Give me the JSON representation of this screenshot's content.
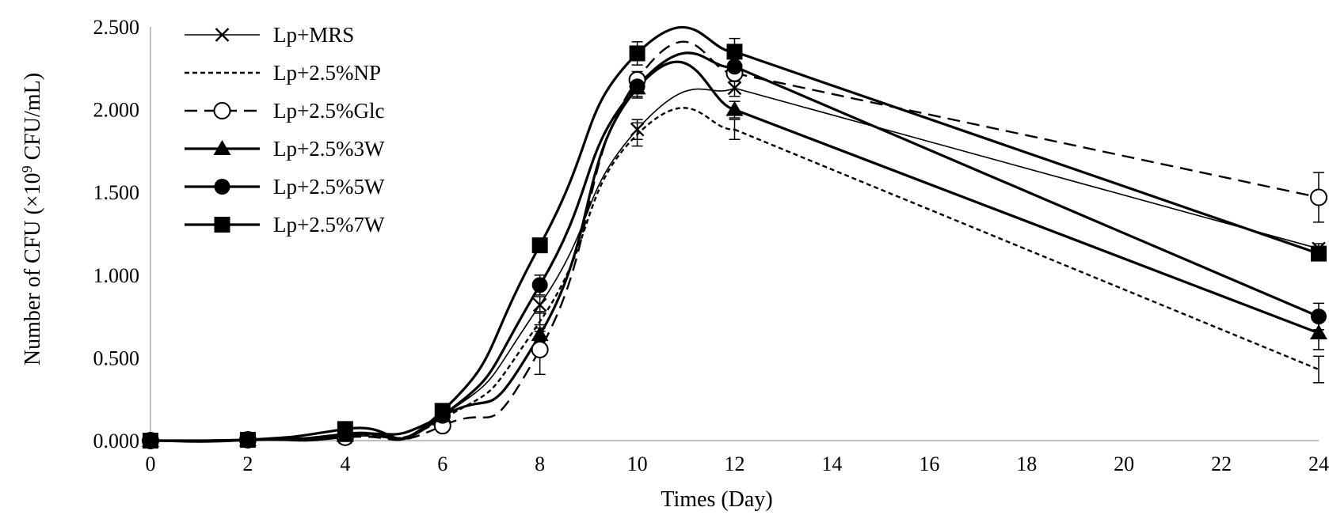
{
  "chart_data": {
    "type": "line",
    "title": "",
    "xlabel": "Times (Day)",
    "ylabel": {
      "prefix": "Number of CFU (×10",
      "superscript": "9",
      "suffix": " CFU/mL)"
    },
    "xlim": [
      0,
      24
    ],
    "ylim": [
      0,
      2.5
    ],
    "x_ticks": [
      "0",
      "2",
      "4",
      "6",
      "8",
      "10",
      "12",
      "14",
      "16",
      "18",
      "20",
      "22",
      "24"
    ],
    "y_ticks": [
      "0.000",
      "0.500",
      "1.000",
      "1.500",
      "2.000",
      "2.500"
    ],
    "grid": false,
    "legend_position": "top-left",
    "x": [
      0,
      2,
      4,
      6,
      8,
      10,
      12,
      24
    ],
    "series": [
      {
        "name": "Lp+MRS",
        "marker": "x",
        "line_style": "solid",
        "line_weight": "thin",
        "values": [
          0.0,
          0.005,
          0.02,
          0.15,
          0.82,
          1.88,
          2.13,
          1.16
        ],
        "errors": [
          0,
          0,
          0.01,
          0.02,
          0.05,
          0.06,
          0.05,
          0.03
        ]
      },
      {
        "name": "Lp+2.5%NP",
        "marker": "none",
        "line_style": "dotted",
        "line_weight": "medium",
        "values": [
          0.0,
          0.005,
          0.03,
          0.13,
          0.72,
          1.85,
          1.88,
          0.43
        ],
        "errors": [
          0,
          0,
          0.01,
          0.02,
          0.06,
          0.07,
          0.06,
          0.08
        ]
      },
      {
        "name": "Lp+2.5%Glc",
        "marker": "circle-open",
        "line_style": "dashed",
        "line_weight": "medium",
        "values": [
          0.0,
          0.005,
          0.02,
          0.09,
          0.55,
          2.18,
          2.22,
          1.47
        ],
        "errors": [
          0,
          0,
          0.01,
          0.02,
          0.15,
          0.05,
          0.05,
          0.15
        ]
      },
      {
        "name": "Lp+2.5%3W",
        "marker": "triangle",
        "line_style": "solid",
        "line_weight": "thick",
        "values": [
          0.0,
          0.005,
          0.03,
          0.15,
          0.64,
          2.13,
          2.0,
          0.65
        ],
        "errors": [
          0,
          0,
          0.01,
          0.02,
          0.04,
          0.06,
          0.05,
          0.1
        ]
      },
      {
        "name": "Lp+2.5%5W",
        "marker": "circle-filled",
        "line_style": "solid",
        "line_weight": "thick",
        "values": [
          0.0,
          0.005,
          0.04,
          0.15,
          0.94,
          2.14,
          2.26,
          0.75
        ],
        "errors": [
          0,
          0,
          0.01,
          0.02,
          0.06,
          0.06,
          0.05,
          0.08
        ]
      },
      {
        "name": "Lp+2.5%7W",
        "marker": "square",
        "line_style": "solid",
        "line_weight": "thick",
        "values": [
          0.0,
          0.005,
          0.07,
          0.18,
          1.18,
          2.34,
          2.35,
          1.13
        ],
        "errors": [
          0,
          0,
          0.01,
          0.02,
          0.03,
          0.07,
          0.08,
          0.03
        ]
      }
    ]
  }
}
